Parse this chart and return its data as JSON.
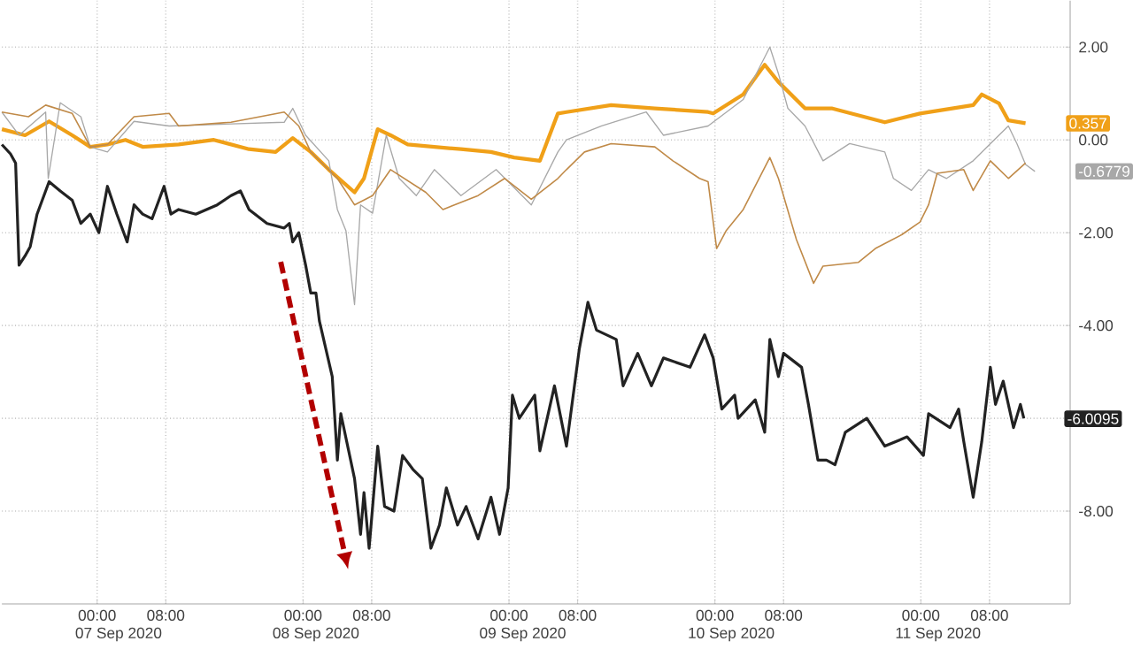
{
  "chart_data": {
    "type": "line",
    "xlim": [
      "2020-09-06T12:54",
      "2020-09-11T17:24"
    ],
    "ylim": [
      -10,
      3
    ],
    "xticks": [
      {
        "value": "2020-09-07T00:00",
        "label": "00:00"
      },
      {
        "value": "2020-09-07T08:00",
        "label": "08:00"
      },
      {
        "value": "2020-09-08T00:00",
        "label": "00:00"
      },
      {
        "value": "2020-09-08T08:00",
        "label": "08:00"
      },
      {
        "value": "2020-09-09T00:00",
        "label": "00:00"
      },
      {
        "value": "2020-09-09T08:00",
        "label": "08:00"
      },
      {
        "value": "2020-09-10T00:00",
        "label": "00:00"
      },
      {
        "value": "2020-09-10T08:00",
        "label": "08:00"
      },
      {
        "value": "2020-09-11T00:00",
        "label": "00:00"
      },
      {
        "value": "2020-09-11T08:00",
        "label": "08:00"
      }
    ],
    "x2lim": [
      "2020-09-06T12:54",
      "2020-09-11T17:24"
    ],
    "x2ticks": [
      {
        "value": "2020-09-07T02:30",
        "label": "07 Sep 2020"
      },
      {
        "value": "2020-09-08T01:30",
        "label": "08 Sep 2020"
      },
      {
        "value": "2020-09-09T01:36",
        "label": "09 Sep 2020"
      },
      {
        "value": "2020-09-10T01:54",
        "label": "10 Sep 2020"
      },
      {
        "value": "2020-09-11T02:00",
        "label": "11 Sep 2020"
      }
    ],
    "yticks": [
      {
        "value": 2,
        "label": "2.00"
      },
      {
        "value": 0,
        "label": "0.00"
      },
      {
        "value": -2,
        "label": "-2.00"
      },
      {
        "value": -4,
        "label": "-4.00"
      },
      {
        "value": -6,
        "label": null
      },
      {
        "value": -8,
        "label": "-8.00"
      }
    ],
    "grid": true,
    "series": [
      {
        "color": "#f0a018",
        "x": [
          "2020-09-06T12:54",
          "2020-09-06T15:36",
          "2020-09-06T18:24",
          "2020-09-06T21:06",
          "2020-09-06T23:12",
          "2020-09-07T01:12",
          "2020-09-07T03:18",
          "2020-09-07T05:18",
          "2020-09-07T09:30",
          "2020-09-07T13:36",
          "2020-09-07T17:42",
          "2020-09-07T20:48",
          "2020-09-07T22:48",
          "2020-09-08T00:54",
          "2020-09-08T03:00",
          "2020-09-08T06:00",
          "2020-09-08T07:06",
          "2020-09-08T08:42",
          "2020-09-08T10:12",
          "2020-09-08T12:12",
          "2020-09-08T18:24",
          "2020-09-08T21:54",
          "2020-09-09T00:36",
          "2020-09-09T03:36",
          "2020-09-09T05:42",
          "2020-09-09T06:42",
          "2020-09-09T11:54",
          "2020-09-09T17:00",
          "2020-09-09T23:12",
          "2020-09-09T23:48",
          "2020-09-10T03:18",
          "2020-09-10T05:48",
          "2020-09-10T07:24",
          "2020-09-10T10:30",
          "2020-09-10T13:36",
          "2020-09-10T19:48",
          "2020-09-10T23:54",
          "2020-09-11T06:06",
          "2020-09-11T07:06",
          "2020-09-11T09:06",
          "2020-09-11T10:12",
          "2020-09-11T12:12"
        ],
        "values": [
          0.23,
          0.1,
          0.4,
          0.1,
          -0.15,
          -0.1,
          0.0,
          -0.15,
          -0.1,
          0.0,
          -0.2,
          -0.26,
          0.04,
          -0.26,
          -0.64,
          -1.13,
          -0.83,
          0.23,
          0.1,
          -0.1,
          -0.2,
          -0.26,
          -0.38,
          -0.45,
          0.57,
          0.6,
          0.75,
          0.68,
          0.6,
          0.57,
          0.98,
          1.62,
          1.25,
          0.68,
          0.68,
          0.38,
          0.57,
          0.75,
          0.98,
          0.79,
          0.42,
          0.36
        ]
      },
      {
        "color": "#a8a8a8",
        "x": [
          "2020-09-06T12:54",
          "2020-09-06T14:54",
          "2020-09-06T18:00",
          "2020-09-06T18:18",
          "2020-09-06T19:42",
          "2020-09-06T22:06",
          "2020-09-06T23:12",
          "2020-09-07T01:12",
          "2020-09-07T04:18",
          "2020-09-07T08:24",
          "2020-09-07T21:48",
          "2020-09-07T22:48",
          "2020-09-08T00:18",
          "2020-09-08T03:00",
          "2020-09-08T04:00",
          "2020-09-08T05:00",
          "2020-09-08T06:00",
          "2020-09-08T06:42",
          "2020-09-08T08:06",
          "2020-09-08T09:42",
          "2020-09-08T11:12",
          "2020-09-08T13:12",
          "2020-09-08T15:18",
          "2020-09-08T18:24",
          "2020-09-08T22:30",
          "2020-09-09T02:36",
          "2020-09-09T05:42",
          "2020-09-09T06:42",
          "2020-09-09T10:48",
          "2020-09-09T16:00",
          "2020-09-09T18:00",
          "2020-09-09T23:12",
          "2020-09-10T03:18",
          "2020-09-10T06:24",
          "2020-09-10T07:24",
          "2020-09-10T08:30",
          "2020-09-10T10:30",
          "2020-09-10T12:36",
          "2020-09-10T15:42",
          "2020-09-10T19:48",
          "2020-09-10T20:48",
          "2020-09-10T22:54",
          "2020-09-11T00:54",
          "2020-09-11T03:00",
          "2020-09-11T06:06",
          "2020-09-11T08:06",
          "2020-09-11T10:12",
          "2020-09-11T11:12",
          "2020-09-11T12:12",
          "2020-09-11T13:18"
        ],
        "values": [
          0.6,
          0.1,
          0.6,
          -0.83,
          0.8,
          0.5,
          -0.15,
          -0.26,
          0.4,
          0.3,
          0.38,
          0.68,
          0.1,
          -0.45,
          -1.5,
          -1.96,
          -3.55,
          -1.4,
          -1.58,
          0.1,
          -0.83,
          -1.2,
          -0.64,
          -1.2,
          -0.64,
          -1.4,
          -0.26,
          0.0,
          0.3,
          0.6,
          0.1,
          0.3,
          0.87,
          2.0,
          1.43,
          0.68,
          0.3,
          -0.45,
          -0.08,
          -0.26,
          -0.83,
          -1.09,
          -0.64,
          -0.83,
          -0.45,
          -0.08,
          0.3,
          -0.08,
          -0.53,
          -0.68
        ]
      },
      {
        "color": "#222222",
        "x": [
          "2020-09-06T12:54",
          "2020-09-06T13:54",
          "2020-09-06T14:30",
          "2020-09-06T14:54",
          "2020-09-06T15:36",
          "2020-09-06T16:12",
          "2020-09-06T17:00",
          "2020-09-06T18:24",
          "2020-09-06T19:42",
          "2020-09-06T21:06",
          "2020-09-06T22:06",
          "2020-09-06T23:12",
          "2020-09-07T00:12",
          "2020-09-07T01:12",
          "2020-09-07T02:18",
          "2020-09-07T03:30",
          "2020-09-07T04:18",
          "2020-09-07T05:18",
          "2020-09-07T06:24",
          "2020-09-07T07:48",
          "2020-09-07T08:36",
          "2020-09-07T09:30",
          "2020-09-07T11:30",
          "2020-09-07T14:00",
          "2020-09-07T15:36",
          "2020-09-07T16:42",
          "2020-09-07T17:42",
          "2020-09-07T19:48",
          "2020-09-07T21:48",
          "2020-09-07T22:24",
          "2020-09-07T22:48",
          "2020-09-07T23:30",
          "2020-09-08T00:18",
          "2020-09-08T00:54",
          "2020-09-08T01:30",
          "2020-09-08T01:54",
          "2020-09-08T03:24",
          "2020-09-08T04:00",
          "2020-09-08T04:24",
          "2020-09-08T06:00",
          "2020-09-08T06:42",
          "2020-09-08T07:06",
          "2020-09-08T07:42",
          "2020-09-08T08:42",
          "2020-09-08T09:30",
          "2020-09-08T10:36",
          "2020-09-08T11:36",
          "2020-09-08T12:48",
          "2020-09-08T13:54",
          "2020-09-08T14:54",
          "2020-09-08T15:54",
          "2020-09-08T16:42",
          "2020-09-08T18:00",
          "2020-09-08T19:00",
          "2020-09-08T20:24",
          "2020-09-08T21:54",
          "2020-09-08T22:54",
          "2020-09-08T23:54",
          "2020-09-09T00:24",
          "2020-09-09T01:12",
          "2020-09-09T03:00",
          "2020-09-09T03:36",
          "2020-09-09T05:18",
          "2020-09-09T06:42",
          "2020-09-09T08:12",
          "2020-09-09T09:12",
          "2020-09-09T10:12",
          "2020-09-09T12:30",
          "2020-09-09T13:18",
          "2020-09-09T15:00",
          "2020-09-09T16:36",
          "2020-09-09T18:00",
          "2020-09-09T21:06",
          "2020-09-09T22:48",
          "2020-09-09T23:48",
          "2020-09-10T00:48",
          "2020-09-10T02:18",
          "2020-09-10T02:42",
          "2020-09-10T04:42",
          "2020-09-10T05:48",
          "2020-09-10T06:24",
          "2020-09-10T07:24",
          "2020-09-10T08:00",
          "2020-09-10T10:06",
          "2020-09-10T10:54",
          "2020-09-10T12:00",
          "2020-09-10T13:00",
          "2020-09-10T14:00",
          "2020-09-10T15:12",
          "2020-09-10T17:42",
          "2020-09-10T19:48",
          "2020-09-10T22:24",
          "2020-09-11T00:18",
          "2020-09-11T00:54",
          "2020-09-11T03:24",
          "2020-09-11T04:24",
          "2020-09-11T05:00",
          "2020-09-11T06:06",
          "2020-09-11T07:06",
          "2020-09-11T08:06",
          "2020-09-11T08:42",
          "2020-09-11T09:36",
          "2020-09-11T10:48",
          "2020-09-11T11:36",
          "2020-09-11T12:00"
        ],
        "values": [
          -0.1,
          -0.3,
          -0.5,
          -2.7,
          -2.5,
          -2.3,
          -1.6,
          -0.9,
          -1.1,
          -1.3,
          -1.8,
          -1.6,
          -2.0,
          -1.0,
          -1.6,
          -2.2,
          -1.4,
          -1.6,
          -1.7,
          -1.0,
          -1.6,
          -1.5,
          -1.6,
          -1.4,
          -1.2,
          -1.1,
          -1.5,
          -1.8,
          -1.9,
          -1.8,
          -2.2,
          -2.0,
          -2.7,
          -3.3,
          -3.3,
          -3.9,
          -5.1,
          -6.9,
          -5.9,
          -7.3,
          -8.5,
          -7.6,
          -8.8,
          -6.6,
          -7.9,
          -8.0,
          -6.8,
          -7.1,
          -7.3,
          -8.8,
          -8.3,
          -7.5,
          -8.3,
          -7.9,
          -8.6,
          -7.7,
          -8.5,
          -7.5,
          -5.5,
          -6.0,
          -5.5,
          -6.7,
          -5.3,
          -6.6,
          -4.5,
          -3.5,
          -4.1,
          -4.3,
          -5.3,
          -4.6,
          -5.3,
          -4.7,
          -4.9,
          -4.2,
          -4.7,
          -5.8,
          -5.5,
          -6.0,
          -5.6,
          -6.3,
          -4.3,
          -5.1,
          -4.6,
          -4.9,
          -5.7,
          -6.9,
          -6.9,
          -7.0,
          -6.3,
          -6.0,
          -6.6,
          -6.4,
          -6.8,
          -5.9,
          -6.2,
          -5.8,
          -6.5,
          -7.7,
          -6.5,
          -4.9,
          -5.7,
          -5.2,
          -6.2,
          -5.7,
          -6.0
        ]
      },
      {
        "color": "#c08a48",
        "x": [
          "2020-09-06T12:54",
          "2020-09-06T16:00",
          "2020-09-06T18:00",
          "2020-09-06T21:06",
          "2020-09-06T23:12",
          "2020-09-07T01:12",
          "2020-09-07T04:18",
          "2020-09-07T08:24",
          "2020-09-07T09:30",
          "2020-09-07T15:36",
          "2020-09-07T21:48",
          "2020-09-07T23:30",
          "2020-09-08T00:54",
          "2020-09-08T04:00",
          "2020-09-08T06:00",
          "2020-09-08T08:06",
          "2020-09-08T10:12",
          "2020-09-08T14:18",
          "2020-09-08T16:18",
          "2020-09-08T20:24",
          "2020-09-08T23:30",
          "2020-09-09T02:36",
          "2020-09-09T05:42",
          "2020-09-09T06:42",
          "2020-09-09T08:48",
          "2020-09-09T11:54",
          "2020-09-09T17:00",
          "2020-09-09T19:06",
          "2020-09-09T22:12",
          "2020-09-09T23:12",
          "2020-09-10T00:12",
          "2020-09-10T01:18",
          "2020-09-10T03:18",
          "2020-09-10T06:24",
          "2020-09-10T07:24",
          "2020-09-10T09:30",
          "2020-09-10T11:30",
          "2020-09-10T12:36",
          "2020-09-10T16:42",
          "2020-09-10T18:42",
          "2020-09-10T21:48",
          "2020-09-10T23:54",
          "2020-09-11T00:54",
          "2020-09-11T01:54",
          "2020-09-11T05:00",
          "2020-09-11T06:06",
          "2020-09-11T08:06",
          "2020-09-11T10:12",
          "2020-09-11T12:12"
        ],
        "values": [
          0.6,
          0.5,
          0.75,
          0.57,
          -0.15,
          -0.1,
          0.5,
          0.57,
          0.3,
          0.38,
          0.6,
          0.3,
          -0.26,
          -0.83,
          -1.4,
          -1.2,
          -0.64,
          -1.13,
          -1.5,
          -1.2,
          -0.83,
          -1.28,
          -0.83,
          -0.64,
          -0.26,
          -0.08,
          -0.15,
          -0.45,
          -0.83,
          -0.9,
          -2.34,
          -1.96,
          -1.5,
          -0.38,
          -0.83,
          -2.15,
          -3.09,
          -2.72,
          -2.64,
          -2.34,
          -2.04,
          -1.77,
          -1.4,
          -0.72,
          -0.64,
          -1.09,
          -0.45,
          -0.83,
          -0.5
        ]
      }
    ],
    "annotations": [
      {
        "text": "0.357",
        "x": "2020-09-11T12:12",
        "y": 0.357
      },
      {
        "text": "-0.6779",
        "x": "2020-09-11T13:18",
        "y": -0.6779
      },
      {
        "text": "-6.0095",
        "x": "2020-09-11T12:00",
        "y": -6.0095
      }
    ]
  }
}
